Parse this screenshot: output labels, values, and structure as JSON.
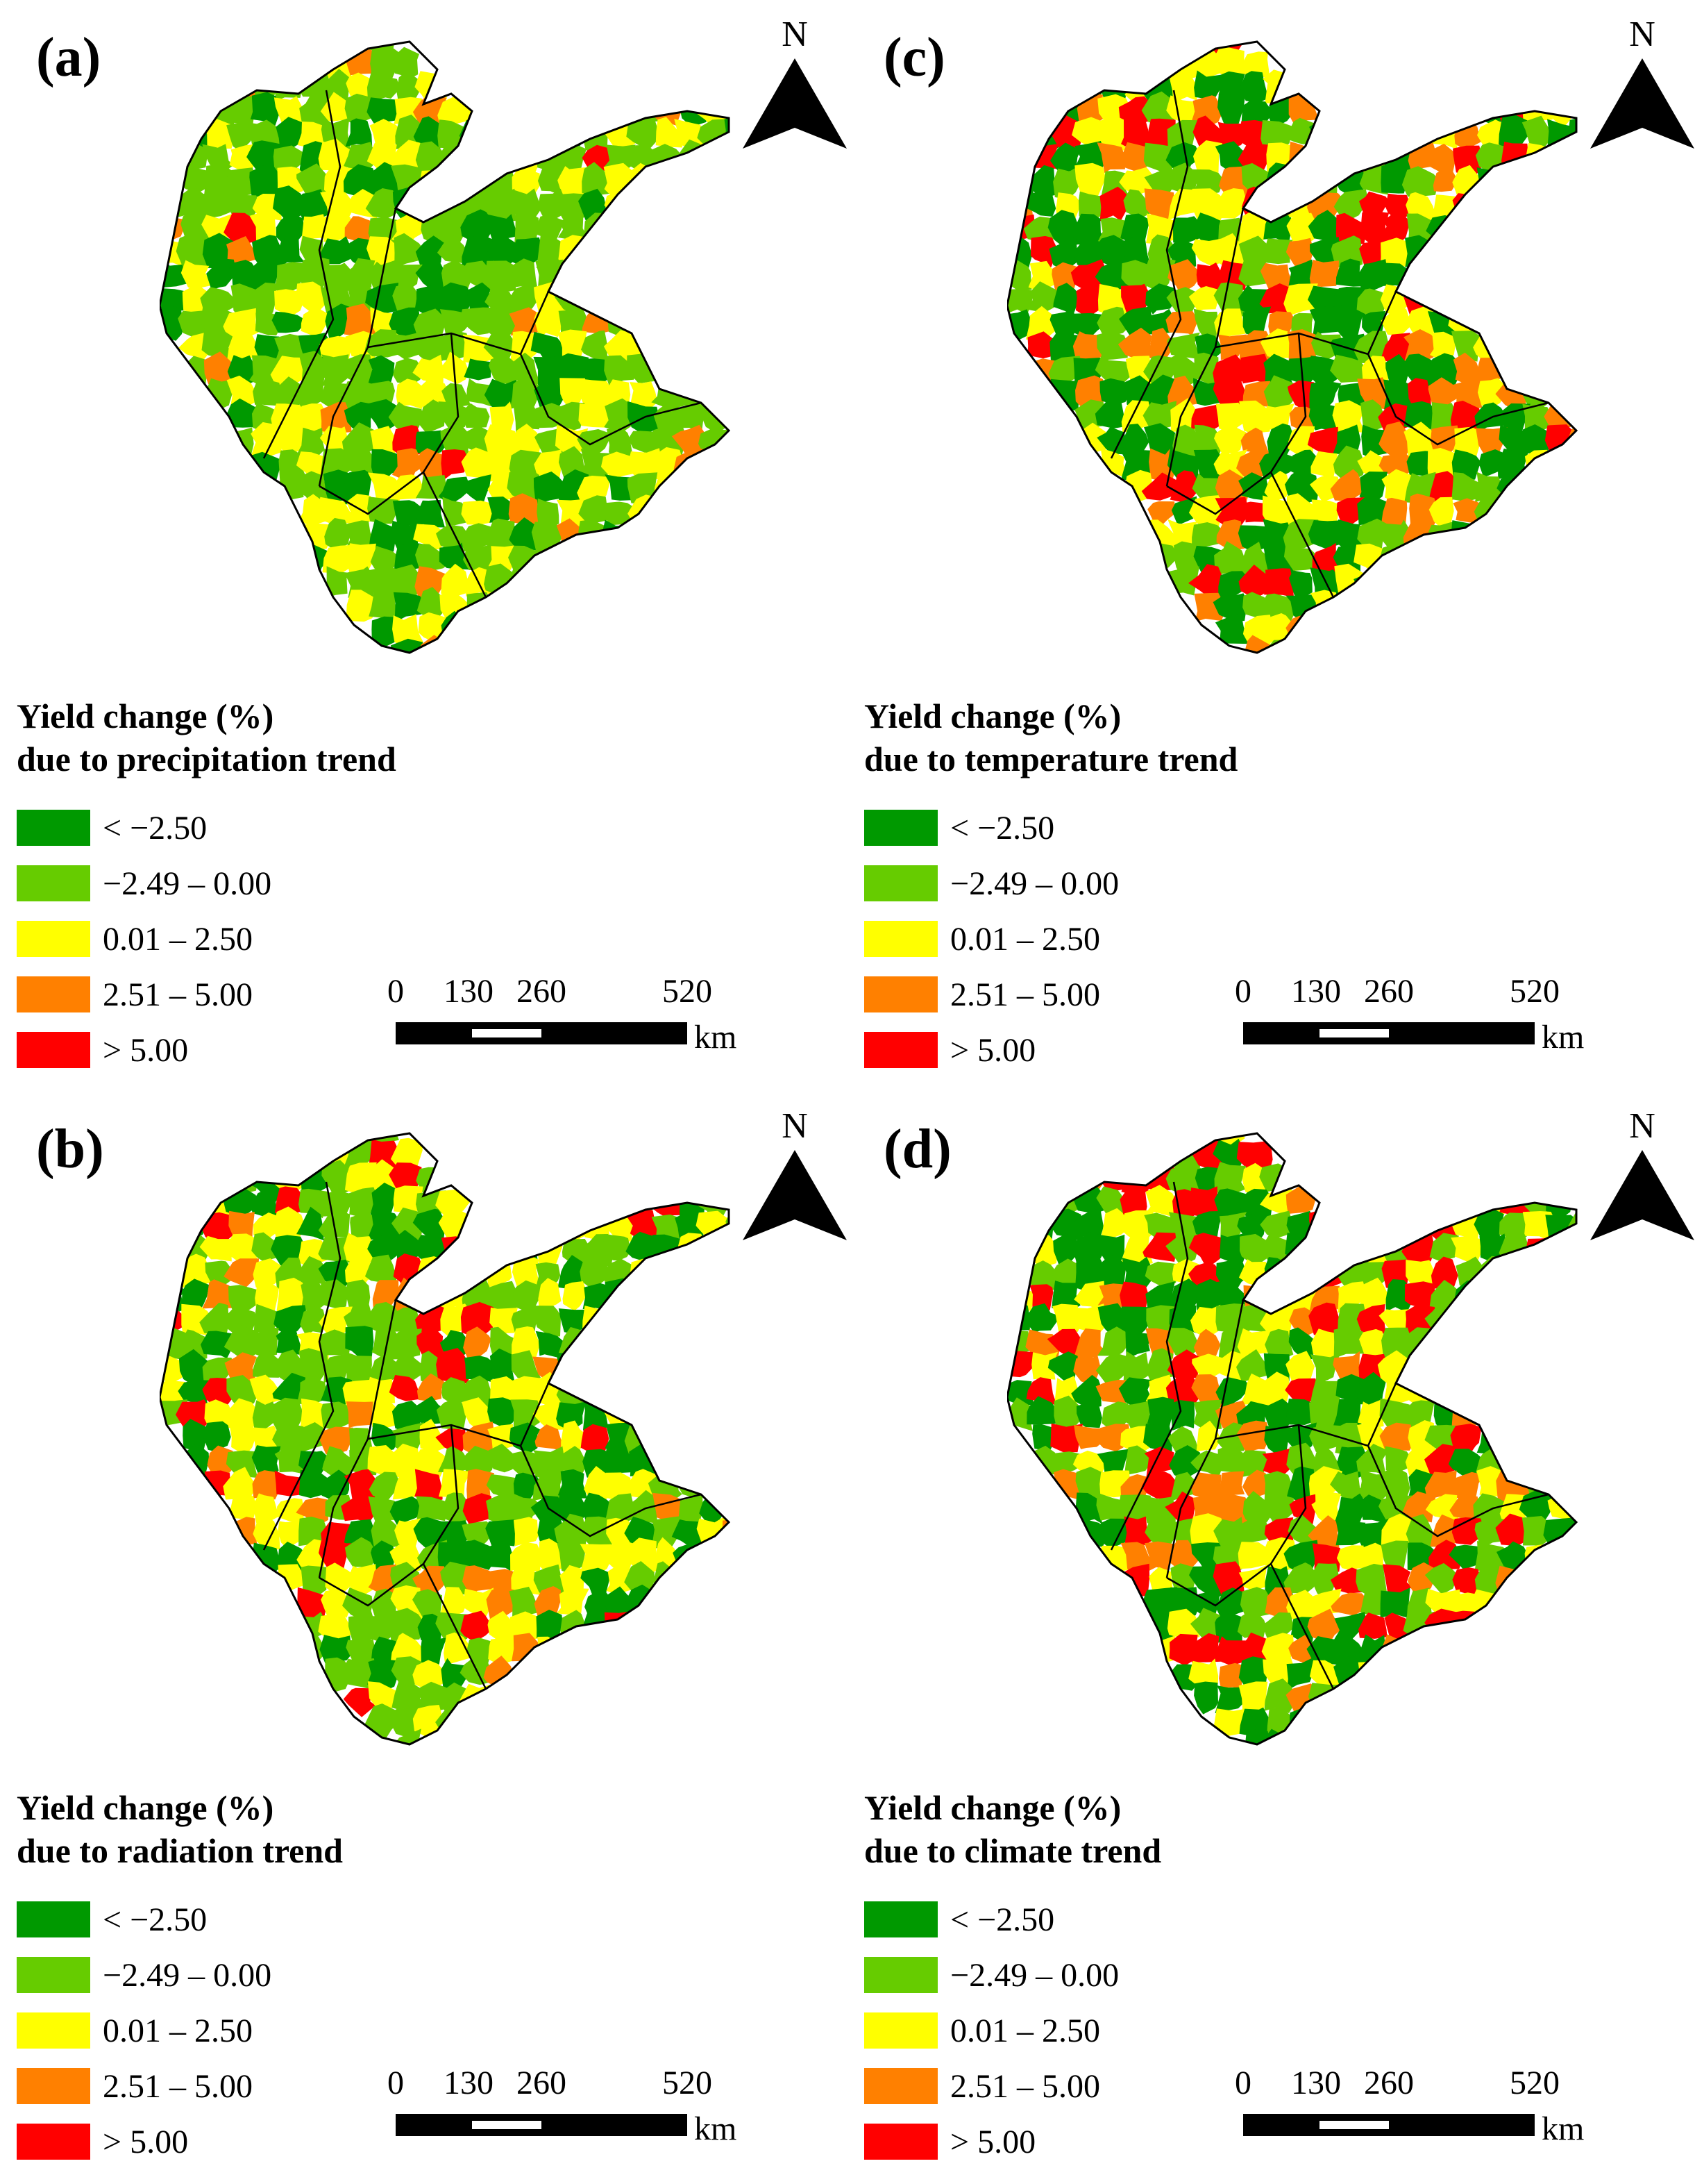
{
  "panels": [
    {
      "label": "(a)",
      "legend_title_line1": "Yield change (%)",
      "legend_title_line2": "due to precipitation trend"
    },
    {
      "label": "(c)",
      "legend_title_line1": "Yield change (%)",
      "legend_title_line2": "due to temperature trend"
    },
    {
      "label": "(b)",
      "legend_title_line1": "Yield change (%)",
      "legend_title_line2": "due to radiation trend"
    },
    {
      "label": "(d)",
      "legend_title_line1": "Yield change (%)",
      "legend_title_line2": "due to climate trend"
    }
  ],
  "north_label": "N",
  "legend_classes": [
    {
      "label": "< −2.50",
      "color": "#009900"
    },
    {
      "label": "−2.49 – 0.00",
      "color": "#66cc00"
    },
    {
      "label": "0.01 – 2.50",
      "color": "#ffff00"
    },
    {
      "label": "2.51 – 5.00",
      "color": "#ff8000"
    },
    {
      "label": "> 5.00",
      "color": "#ff0000"
    }
  ],
  "scale": {
    "ticks": [
      "0",
      "130",
      "260",
      "520"
    ],
    "tick_values": [
      0,
      130,
      260,
      520
    ],
    "unit": "km"
  },
  "color_mixes": [
    [
      0.22,
      0.45,
      0.28,
      0.03,
      0.02
    ],
    [
      0.3,
      0.22,
      0.22,
      0.12,
      0.14
    ],
    [
      0.24,
      0.32,
      0.28,
      0.08,
      0.08
    ],
    [
      0.28,
      0.3,
      0.16,
      0.12,
      0.14
    ]
  ]
}
